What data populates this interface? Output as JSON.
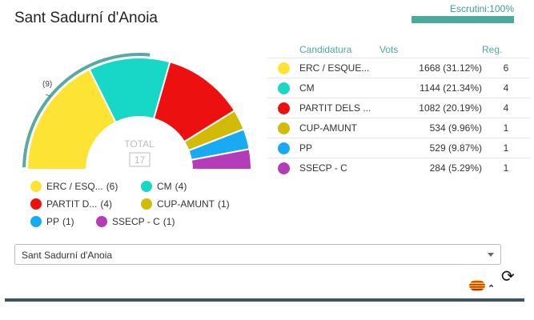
{
  "title": "Sant Sadurní d'Anoia",
  "progress": {
    "label": "Escrutini:100%",
    "value": 100
  },
  "chart_data": {
    "type": "pie",
    "total_label": "TOTAL",
    "total_value": "17",
    "majority_label": "(9)",
    "series": [
      {
        "name": "ERC / ESQUE...",
        "legend": "ERC / ESQ...",
        "color": "#fde334",
        "votes": "1668 (31.12%)",
        "seats": 6
      },
      {
        "name": "CM",
        "legend": "CM",
        "color": "#17d7c6",
        "votes": "1144 (21.34%)",
        "seats": 4
      },
      {
        "name": "PARTIT DELS ...",
        "legend": "PARTIT D...",
        "color": "#ed1010",
        "votes": "1082 (20.19%)",
        "seats": 4
      },
      {
        "name": "CUP-AMUNT",
        "legend": "CUP-AMUNT",
        "color": "#d2bb07",
        "votes": "534 (9.96%)",
        "seats": 1
      },
      {
        "name": "PP",
        "legend": "PP",
        "color": "#18aaf2",
        "votes": "529 (9.87%)",
        "seats": 1
      },
      {
        "name": "SSECP - C",
        "legend": "SSECP - C",
        "color": "#b43cb8",
        "votes": "284 (5.29%)",
        "seats": 1
      }
    ]
  },
  "table": {
    "headers": {
      "candidatura": "Candidatura",
      "vots": "Vots",
      "reg": "Reg."
    }
  },
  "select": {
    "value": "Sant Sadurní d'Anoia"
  },
  "icons": {
    "refresh": "refresh-icon",
    "flag": "catalan-flag-icon",
    "chevron": "chevron-up-icon"
  }
}
